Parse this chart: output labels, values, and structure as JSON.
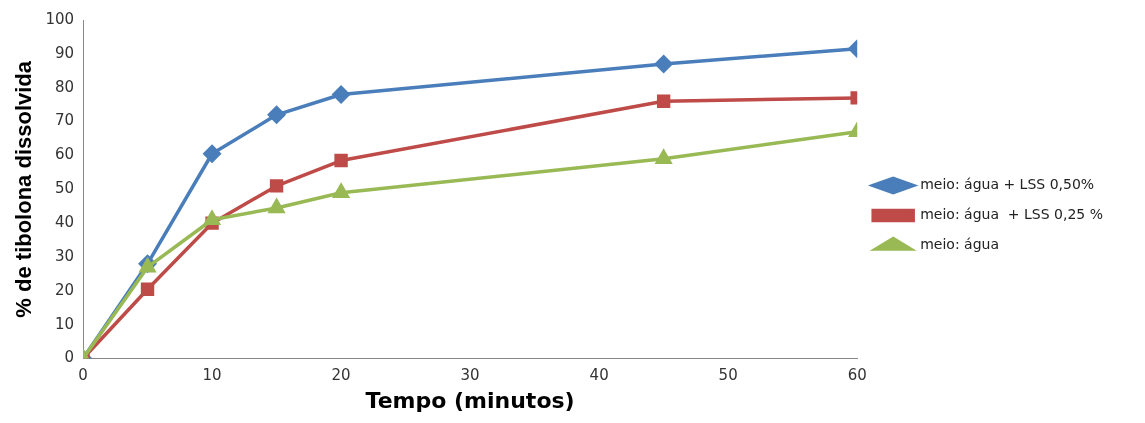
{
  "chart_data": {
    "type": "line",
    "xlabel": "Tempo (minutos)",
    "ylabel": "% de tibolona dissolvida",
    "x": [
      0,
      5,
      10,
      15,
      20,
      45,
      60
    ],
    "xlim": [
      0,
      60
    ],
    "xticks": [
      0,
      10,
      20,
      30,
      40,
      50,
      60
    ],
    "ylim": [
      0,
      100
    ],
    "yticks": [
      0,
      10,
      20,
      30,
      40,
      50,
      60,
      70,
      80,
      90,
      100
    ],
    "grid": false,
    "legend": "right",
    "line_style": "solid",
    "series": [
      {
        "name": "meio: água + LSS 0,50%",
        "color": "#4a7ebb",
        "marker": "diamond",
        "values": [
          0,
          28,
          60.5,
          72,
          78,
          87,
          91.5
        ]
      },
      {
        "name": "meio: água  + LSS 0,25 %",
        "color": "#be4b48",
        "marker": "square",
        "values": [
          0,
          20.5,
          40,
          51,
          58.5,
          76,
          77
        ]
      },
      {
        "name": "meio: água",
        "color": "#98b954",
        "marker": "triangle",
        "values": [
          0,
          27,
          41,
          44.5,
          49,
          59,
          67
        ]
      }
    ]
  }
}
